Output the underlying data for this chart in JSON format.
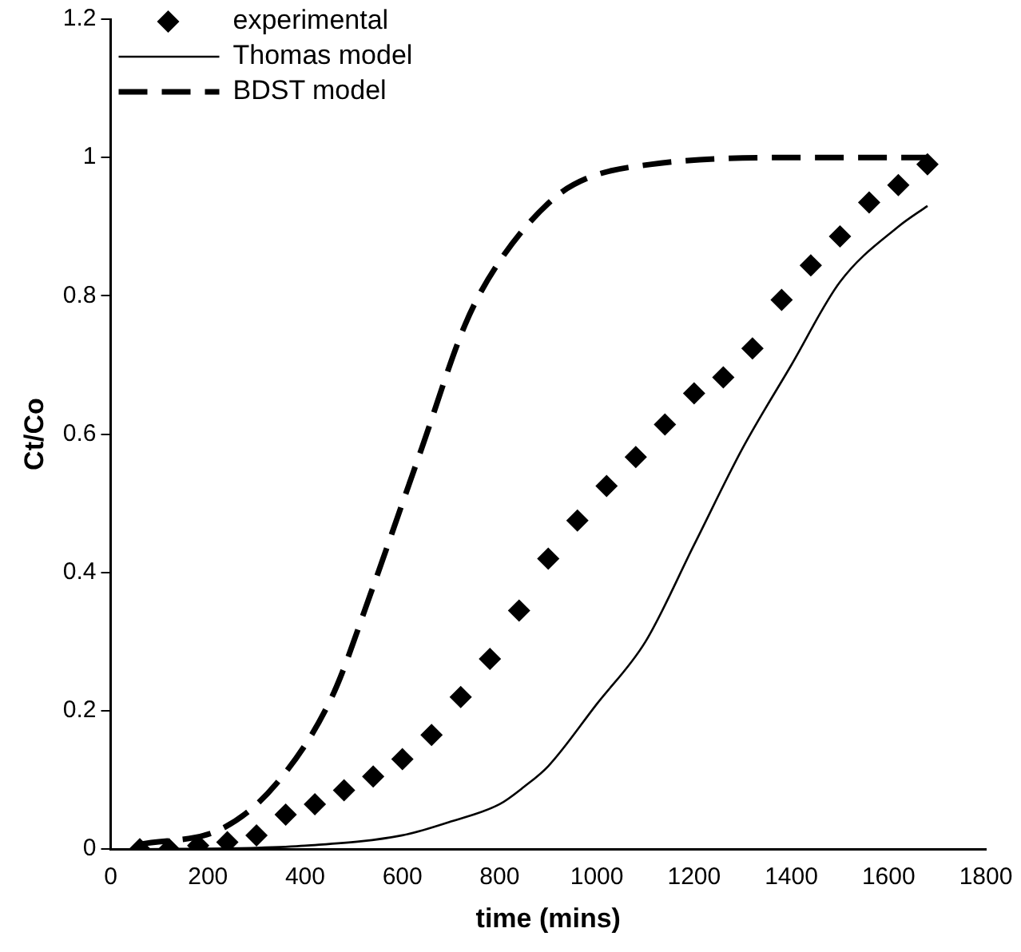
{
  "chart_data": {
    "type": "scatter",
    "xlabel": "time (mins)",
    "ylabel": "Ct/Co",
    "xlim": [
      0,
      1800
    ],
    "xticks": [
      0,
      200,
      400,
      600,
      800,
      1000,
      1200,
      1400,
      1600,
      1800
    ],
    "ylim": [
      0,
      1.2
    ],
    "yticks": [
      0,
      0.2,
      0.4,
      0.6,
      0.8,
      1,
      1.2
    ],
    "grid": false,
    "legend": "top left",
    "series": [
      {
        "name": "experimental",
        "marker": "diamond",
        "color": "#000000",
        "x": [
          60,
          120,
          180,
          240,
          300,
          360,
          420,
          480,
          540,
          600,
          660,
          720,
          780,
          840,
          900,
          960,
          1020,
          1080,
          1140,
          1200,
          1260,
          1320,
          1380,
          1440,
          1500,
          1560,
          1620,
          1680
        ],
        "values": [
          0,
          0,
          0.005,
          0.01,
          0.02,
          0.05,
          0.065,
          0.085,
          0.105,
          0.13,
          0.165,
          0.22,
          0.275,
          0.345,
          0.42,
          0.475,
          0.525,
          0.567,
          0.614,
          0.659,
          0.682,
          0.724,
          0.794,
          0.844,
          0.886,
          0.935,
          0.96,
          0.99
        ]
      },
      {
        "name": "Thomas model",
        "type": "line",
        "marker": "none",
        "line_style": "solid",
        "color": "#000000",
        "x": [
          60,
          300,
          400,
          600,
          700,
          800,
          850,
          900,
          1000,
          1100,
          1200,
          1300,
          1400,
          1500,
          1620,
          1680
        ],
        "values": [
          0,
          0.002,
          0.005,
          0.02,
          0.04,
          0.065,
          0.09,
          0.12,
          0.21,
          0.3,
          0.44,
          0.58,
          0.7,
          0.82,
          0.9,
          0.93
        ]
      },
      {
        "name": "BDST model",
        "type": "line",
        "marker": "none",
        "line_style": "dashed",
        "color": "#000000",
        "x": [
          60,
          230,
          340,
          455,
          535,
          600,
          640,
          730,
          800,
          910,
          980,
          1110,
          1400,
          1680
        ],
        "values": [
          0.007,
          0.03,
          0.094,
          0.22,
          0.37,
          0.5,
          0.58,
          0.76,
          0.85,
          0.94,
          0.97,
          0.99,
          1,
          1
        ]
      }
    ]
  }
}
